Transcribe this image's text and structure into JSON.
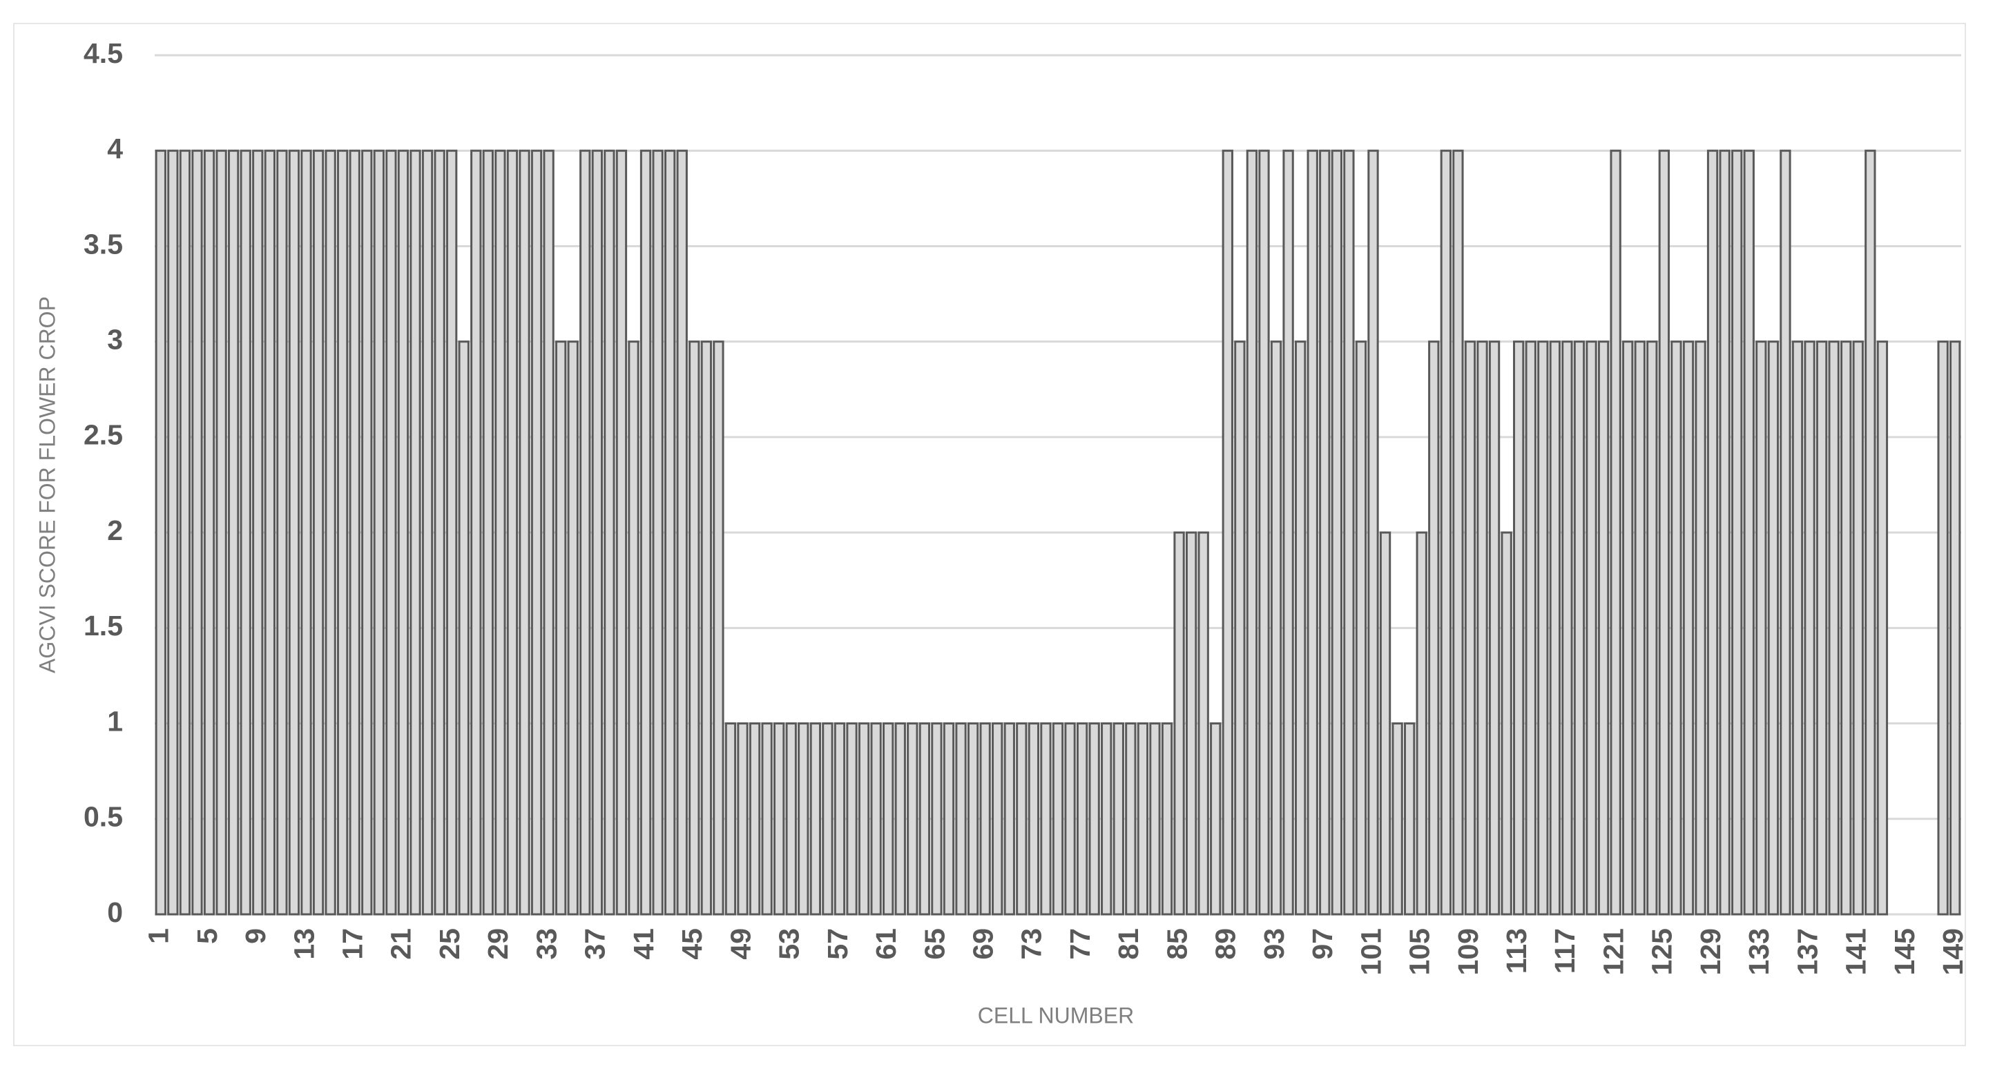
{
  "chart_data": {
    "type": "bar",
    "x_label": "CELL NUMBER",
    "y_label": "AGCVI SCORE FOR FLOWER CROP",
    "categories": [
      "1",
      null,
      null,
      null,
      "5",
      null,
      null,
      null,
      "9",
      null,
      null,
      null,
      "13",
      null,
      null,
      null,
      "17",
      null,
      null,
      null,
      "21",
      null,
      null,
      null,
      "25",
      null,
      null,
      null,
      "29",
      null,
      null,
      null,
      "33",
      null,
      null,
      null,
      "37",
      null,
      null,
      null,
      "41",
      null,
      null,
      null,
      "45",
      null,
      null,
      null,
      "49",
      null,
      null,
      null,
      "53",
      null,
      null,
      null,
      "57",
      null,
      null,
      null,
      "61",
      null,
      null,
      null,
      "65",
      null,
      null,
      null,
      "69",
      null,
      null,
      null,
      "73",
      null,
      null,
      null,
      "77",
      null,
      null,
      null,
      "81",
      null,
      null,
      null,
      "85",
      null,
      null,
      null,
      "89",
      null,
      null,
      null,
      "93",
      null,
      null,
      null,
      "97",
      null,
      null,
      null,
      "101",
      null,
      null,
      null,
      "105",
      null,
      null,
      null,
      "109",
      null,
      null,
      null,
      "113",
      null,
      null,
      null,
      "117",
      null,
      null,
      null,
      "121",
      null,
      null,
      null,
      "125",
      null,
      null,
      null,
      "129",
      null,
      null,
      null,
      "133",
      null,
      null,
      null,
      "137",
      null,
      null,
      null,
      "141",
      null,
      null,
      null,
      "145",
      null,
      null,
      null,
      "149"
    ],
    "values": [
      4,
      4,
      4,
      4,
      4,
      4,
      4,
      4,
      4,
      4,
      4,
      4,
      4,
      4,
      4,
      4,
      4,
      4,
      4,
      4,
      4,
      4,
      4,
      4,
      4,
      3,
      4,
      4,
      4,
      4,
      4,
      4,
      4,
      3,
      3,
      4,
      4,
      4,
      4,
      3,
      4,
      4,
      4,
      4,
      3,
      3,
      3,
      1,
      1,
      1,
      1,
      1,
      1,
      1,
      1,
      1,
      1,
      1,
      1,
      1,
      1,
      1,
      1,
      1,
      1,
      1,
      1,
      1,
      1,
      1,
      1,
      1,
      1,
      1,
      1,
      1,
      1,
      1,
      1,
      1,
      1,
      1,
      1,
      1,
      2,
      2,
      2,
      1,
      4,
      3,
      4,
      4,
      3,
      4,
      3,
      4,
      4,
      4,
      4,
      3,
      4,
      2,
      1,
      1,
      2,
      3,
      4,
      4,
      3,
      3,
      3,
      2,
      3,
      3,
      3,
      3,
      3,
      3,
      3,
      3,
      4,
      3,
      3,
      3,
      4,
      3,
      3,
      3,
      4,
      4,
      4,
      4,
      3,
      3,
      4,
      3,
      3,
      3,
      3,
      3,
      3,
      4,
      3,
      0,
      0,
      0,
      0,
      3,
      3
    ],
    "color": "#d9d9d9",
    "edge_color": "#595959",
    "ylim": [
      0,
      4.5
    ],
    "yticks": [
      0,
      0.5,
      1,
      1.5,
      2,
      2.5,
      3,
      3.5,
      4,
      4.5
    ],
    "grid": true
  }
}
